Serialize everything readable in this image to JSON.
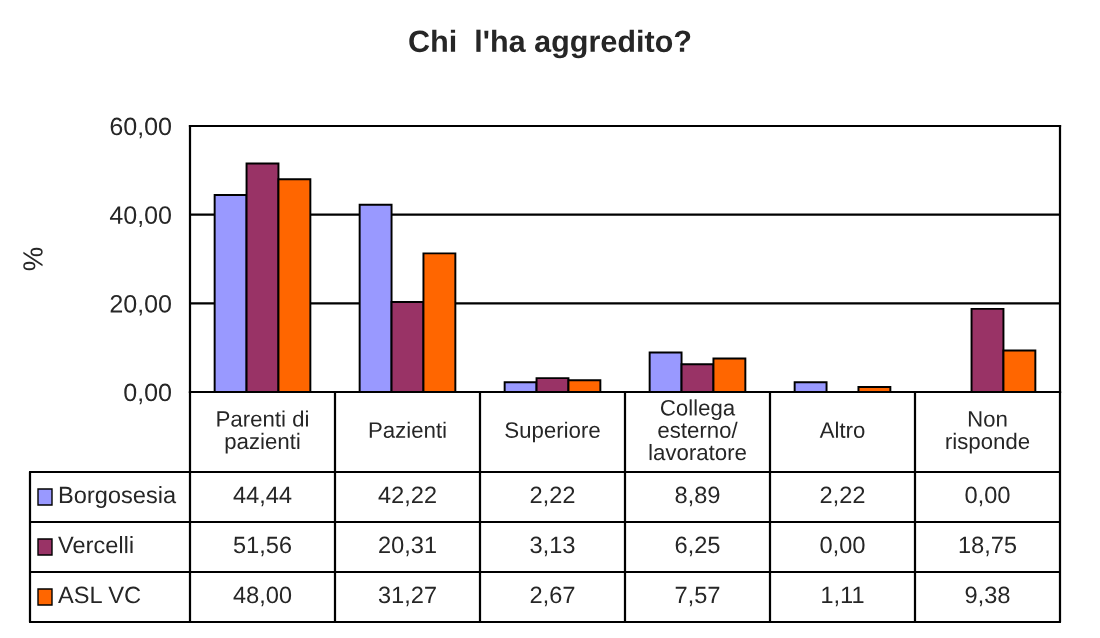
{
  "chart_data": {
    "type": "bar",
    "title": "Chi  l'ha aggredito?",
    "ylabel": "%",
    "categories": [
      "Parenti di pazienti",
      "Pazienti",
      "Superiore",
      "Collega esterno/lavoratore",
      "Altro",
      "Non risponde"
    ],
    "series": [
      {
        "name": "Borgosesia",
        "color": "#9999ff",
        "values": [
          44.44,
          42.22,
          2.22,
          8.89,
          2.22,
          0.0
        ],
        "value_labels": [
          "44,44",
          "42,22",
          "2,22",
          "8,89",
          "2,22",
          "0,00"
        ]
      },
      {
        "name": "Vercelli",
        "color": "#993366",
        "values": [
          51.56,
          20.31,
          3.13,
          6.25,
          0.0,
          18.75
        ],
        "value_labels": [
          "51,56",
          "20,31",
          "3,13",
          "6,25",
          "0,00",
          "18,75"
        ]
      },
      {
        "name": "ASL VC",
        "color": "#ff6600",
        "values": [
          48.0,
          31.27,
          2.67,
          7.57,
          1.11,
          9.38
        ],
        "value_labels": [
          "48,00",
          "31,27",
          "2,67",
          "7,57",
          "1,11",
          "9,38"
        ]
      }
    ],
    "ylim": [
      0,
      60
    ],
    "yticks": [
      {
        "value": 0,
        "label": "0,00"
      },
      {
        "value": 20,
        "label": "20,00"
      },
      {
        "value": 40,
        "label": "40,00"
      },
      {
        "value": 60,
        "label": "60,00"
      }
    ],
    "grid": "y",
    "legend": "bottom left"
  }
}
